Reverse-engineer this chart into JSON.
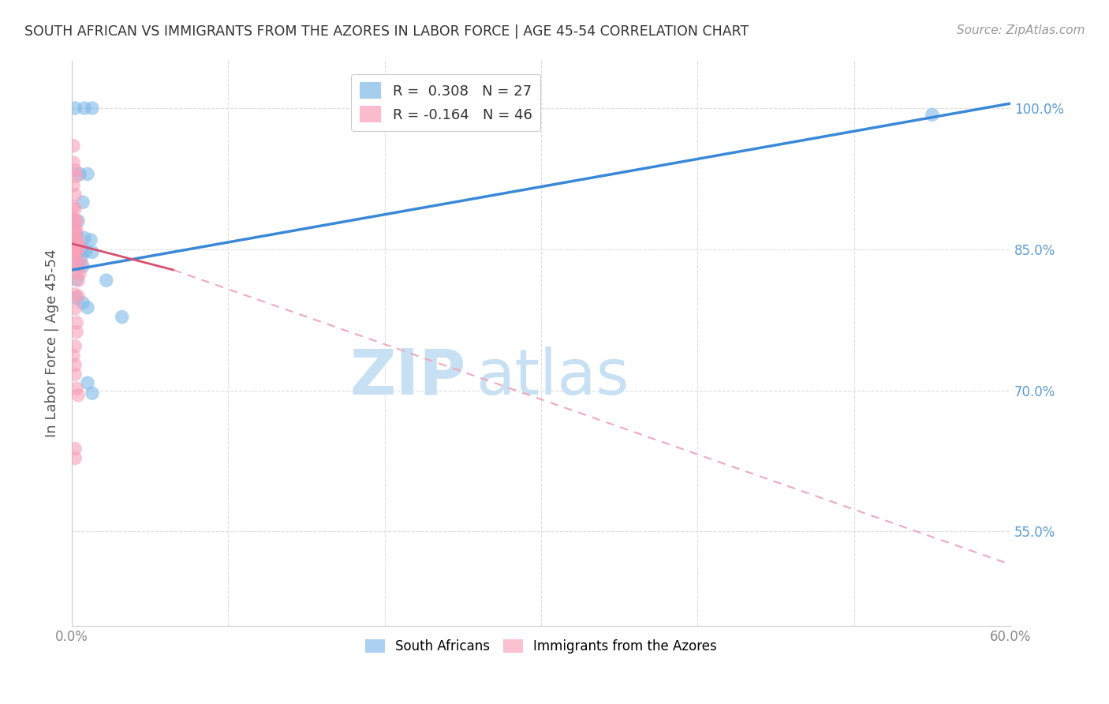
{
  "title": "SOUTH AFRICAN VS IMMIGRANTS FROM THE AZORES IN LABOR FORCE | AGE 45-54 CORRELATION CHART",
  "source": "Source: ZipAtlas.com",
  "ylabel": "In Labor Force | Age 45-54",
  "watermark_zip": "ZIP",
  "watermark_atlas": "atlas",
  "xlim": [
    0.0,
    0.6
  ],
  "ylim": [
    0.45,
    1.05
  ],
  "x_ticks": [
    0.0,
    0.1,
    0.2,
    0.3,
    0.4,
    0.5,
    0.6
  ],
  "x_tick_labels": [
    "0.0%",
    "",
    "",
    "",
    "",
    "",
    "60.0%"
  ],
  "y_ticks": [
    0.55,
    0.7,
    0.85,
    1.0
  ],
  "y_tick_labels": [
    "55.0%",
    "70.0%",
    "85.0%",
    "100.0%"
  ],
  "blue_line": [
    [
      0.0,
      0.828
    ],
    [
      0.6,
      1.005
    ]
  ],
  "pink_line_solid": [
    [
      0.0,
      0.856
    ],
    [
      0.065,
      0.828
    ]
  ],
  "pink_line_dash": [
    [
      0.065,
      0.828
    ],
    [
      0.6,
      0.515
    ]
  ],
  "blue_scatter": [
    [
      0.002,
      1.0
    ],
    [
      0.008,
      1.0
    ],
    [
      0.013,
      1.0
    ],
    [
      0.005,
      0.93
    ],
    [
      0.01,
      0.93
    ],
    [
      0.007,
      0.9
    ],
    [
      0.004,
      0.88
    ],
    [
      0.003,
      0.865
    ],
    [
      0.008,
      0.862
    ],
    [
      0.012,
      0.86
    ],
    [
      0.003,
      0.852
    ],
    [
      0.006,
      0.85
    ],
    [
      0.009,
      0.848
    ],
    [
      0.013,
      0.847
    ],
    [
      0.003,
      0.843
    ],
    [
      0.006,
      0.841
    ],
    [
      0.004,
      0.833
    ],
    [
      0.007,
      0.832
    ],
    [
      0.003,
      0.818
    ],
    [
      0.022,
      0.817
    ],
    [
      0.003,
      0.798
    ],
    [
      0.007,
      0.793
    ],
    [
      0.01,
      0.788
    ],
    [
      0.032,
      0.778
    ],
    [
      0.01,
      0.708
    ],
    [
      0.013,
      0.697
    ],
    [
      0.55,
      0.993
    ]
  ],
  "pink_scatter": [
    [
      0.001,
      0.96
    ],
    [
      0.001,
      0.942
    ],
    [
      0.002,
      0.934
    ],
    [
      0.003,
      0.928
    ],
    [
      0.001,
      0.918
    ],
    [
      0.002,
      0.908
    ],
    [
      0.001,
      0.895
    ],
    [
      0.002,
      0.893
    ],
    [
      0.001,
      0.882
    ],
    [
      0.002,
      0.881
    ],
    [
      0.003,
      0.88
    ],
    [
      0.001,
      0.872
    ],
    [
      0.002,
      0.871
    ],
    [
      0.003,
      0.87
    ],
    [
      0.001,
      0.862
    ],
    [
      0.002,
      0.861
    ],
    [
      0.004,
      0.86
    ],
    [
      0.001,
      0.856
    ],
    [
      0.002,
      0.855
    ],
    [
      0.003,
      0.854
    ],
    [
      0.005,
      0.853
    ],
    [
      0.001,
      0.85
    ],
    [
      0.002,
      0.849
    ],
    [
      0.003,
      0.848
    ],
    [
      0.001,
      0.844
    ],
    [
      0.002,
      0.843
    ],
    [
      0.001,
      0.84
    ],
    [
      0.003,
      0.836
    ],
    [
      0.006,
      0.835
    ],
    [
      0.003,
      0.826
    ],
    [
      0.005,
      0.824
    ],
    [
      0.004,
      0.817
    ],
    [
      0.002,
      0.802
    ],
    [
      0.004,
      0.8
    ],
    [
      0.002,
      0.787
    ],
    [
      0.003,
      0.772
    ],
    [
      0.003,
      0.762
    ],
    [
      0.002,
      0.747
    ],
    [
      0.001,
      0.737
    ],
    [
      0.002,
      0.727
    ],
    [
      0.002,
      0.717
    ],
    [
      0.003,
      0.702
    ],
    [
      0.004,
      0.695
    ],
    [
      0.002,
      0.638
    ],
    [
      0.002,
      0.628
    ]
  ],
  "blue_color": "#7EB8E8",
  "pink_color": "#F8A0B8",
  "blue_line_color": "#3A88D8",
  "pink_line_solid_color": "#D85070",
  "pink_line_dash_color": "#F0A8BC",
  "grid_color": "#DDDDDD",
  "title_color": "#333333",
  "axis_label_color": "#555555",
  "right_tick_color": "#5B9BD5",
  "watermark_color": "#C8E0F4",
  "background_color": "#FFFFFF"
}
